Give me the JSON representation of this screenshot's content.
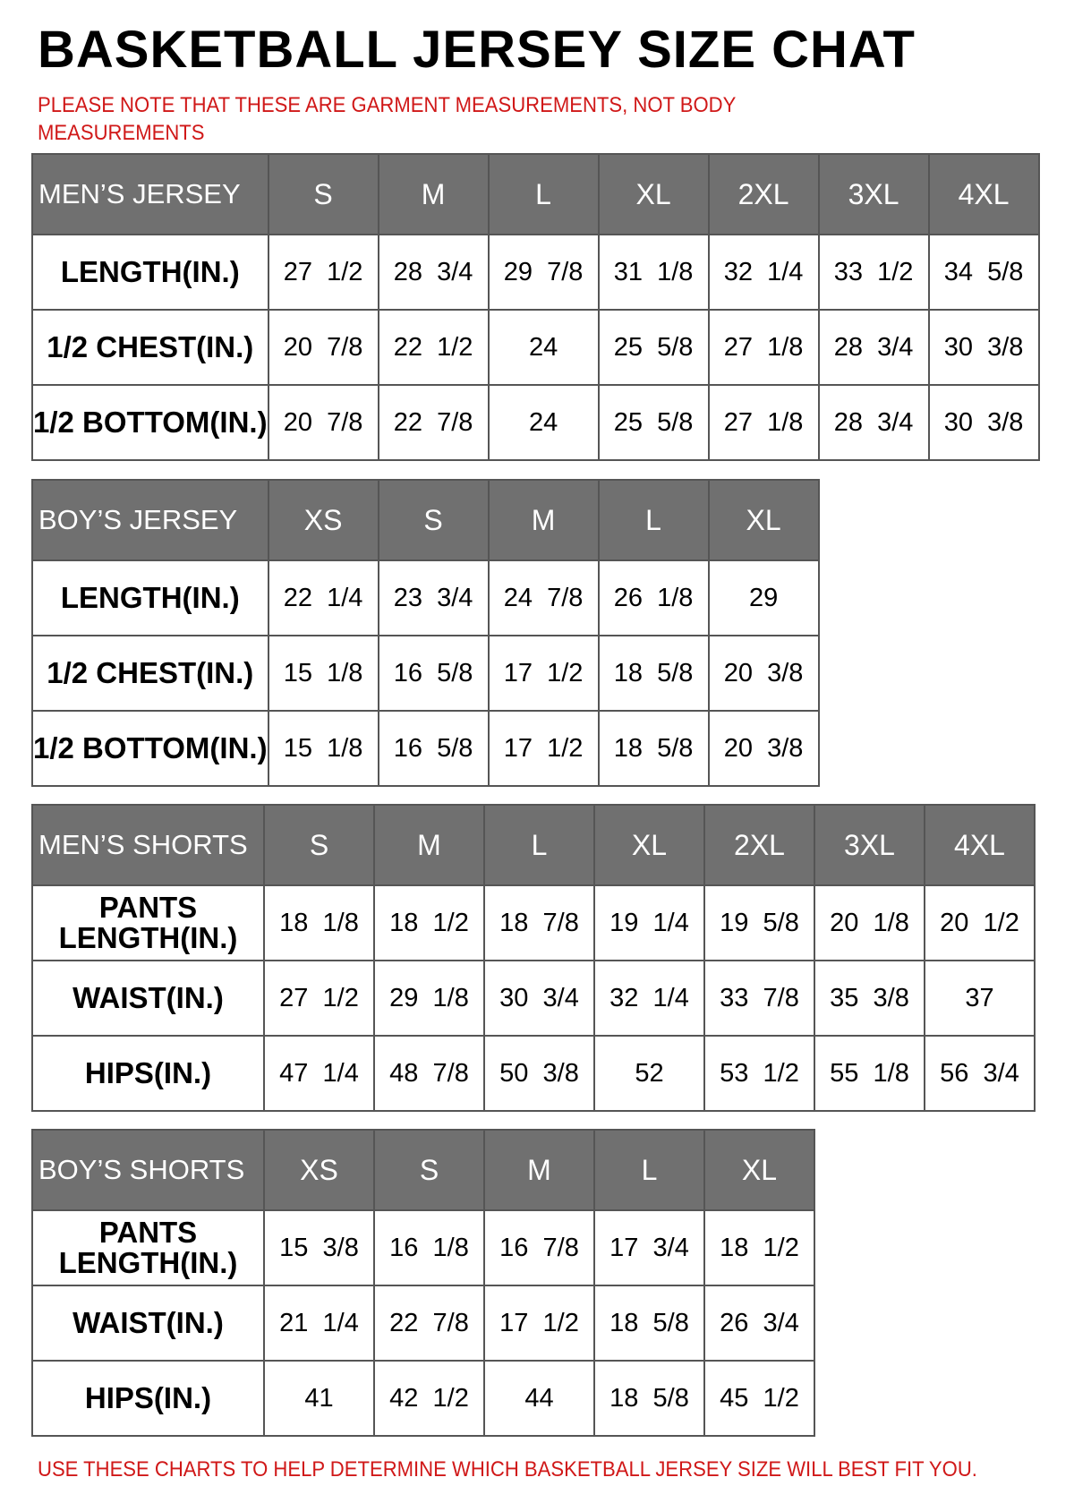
{
  "title": "BASKETBALL JERSEY SIZE CHAT",
  "note": "PLEASE NOTE THAT THESE ARE GARMENT MEASUREMENTS, NOT BODY MEASUREMENTS",
  "footer": "USE THESE CHARTS TO HELP DETERMINE WHICH BASKETBALL JERSEY SIZE WILL BEST FIT YOU.",
  "colors": {
    "header_bg": "#707070",
    "note_red": "#d01818"
  },
  "tables": [
    {
      "heading": "MEN’S JERSEY",
      "sizes": [
        "S",
        "M",
        "L",
        "XL",
        "2XL",
        "3XL",
        "4XL"
      ],
      "rows": [
        {
          "label": "LENGTH(IN.)",
          "values": [
            "27  1/2",
            "28  3/4",
            "29  7/8",
            "31  1/8",
            "32  1/4",
            "33  1/2",
            "34  5/8"
          ]
        },
        {
          "label": "1/2  CHEST(IN.)",
          "values": [
            "20  7/8",
            "22  1/2",
            "24",
            "25  5/8",
            "27  1/8",
            "28  3/4",
            "30  3/8"
          ]
        },
        {
          "label": "1/2  BOTTOM(IN.)",
          "values": [
            "20  7/8",
            "22  7/8",
            "24",
            "25  5/8",
            "27  1/8",
            "28  3/4",
            "30  3/8"
          ]
        }
      ]
    },
    {
      "heading": "BOY’S JERSEY",
      "sizes": [
        "XS",
        "S",
        "M",
        "L",
        "XL"
      ],
      "rows": [
        {
          "label": "LENGTH(IN.)",
          "values": [
            "22  1/4",
            "23  3/4",
            "24  7/8",
            "26  1/8",
            "29"
          ]
        },
        {
          "label": "1/2  CHEST(IN.)",
          "values": [
            "15  1/8",
            "16  5/8",
            "17  1/2",
            "18  5/8",
            "20  3/8"
          ]
        },
        {
          "label": "1/2  BOTTOM(IN.)",
          "values": [
            "15  1/8",
            "16  5/8",
            "17  1/2",
            "18  5/8",
            "20  3/8"
          ]
        }
      ]
    },
    {
      "heading": "MEN’S SHORTS",
      "sizes": [
        "S",
        "M",
        "L",
        "XL",
        "2XL",
        "3XL",
        "4XL"
      ],
      "rows": [
        {
          "label": "PANTS LENGTH(IN.)",
          "values": [
            "18  1/8",
            "18  1/2",
            "18  7/8",
            "19  1/4",
            "19  5/8",
            "20  1/8",
            "20  1/2"
          ]
        },
        {
          "label": "WAIST(IN.)",
          "values": [
            "27  1/2",
            "29  1/8",
            "30  3/4",
            "32  1/4",
            "33  7/8",
            "35  3/8",
            "37"
          ]
        },
        {
          "label": "HIPS(IN.)",
          "values": [
            "47  1/4",
            "48  7/8",
            "50  3/8",
            "52",
            "53  1/2",
            "55  1/8",
            "56  3/4"
          ]
        }
      ]
    },
    {
      "heading": "BOY’S SHORTS",
      "sizes": [
        "XS",
        "S",
        "M",
        "L",
        "XL"
      ],
      "rows": [
        {
          "label": "PANTS LENGTH(IN.)",
          "values": [
            "15  3/8",
            "16  1/8",
            "16  7/8",
            "17  3/4",
            "18  1/2"
          ]
        },
        {
          "label": "WAIST(IN.)",
          "values": [
            "21  1/4",
            "22  7/8",
            "17  1/2",
            "18  5/8",
            "26  3/4"
          ]
        },
        {
          "label": "HIPS(IN.)",
          "values": [
            "41",
            "42  1/2",
            "44",
            "18  5/8",
            "45  1/2"
          ]
        }
      ]
    }
  ]
}
